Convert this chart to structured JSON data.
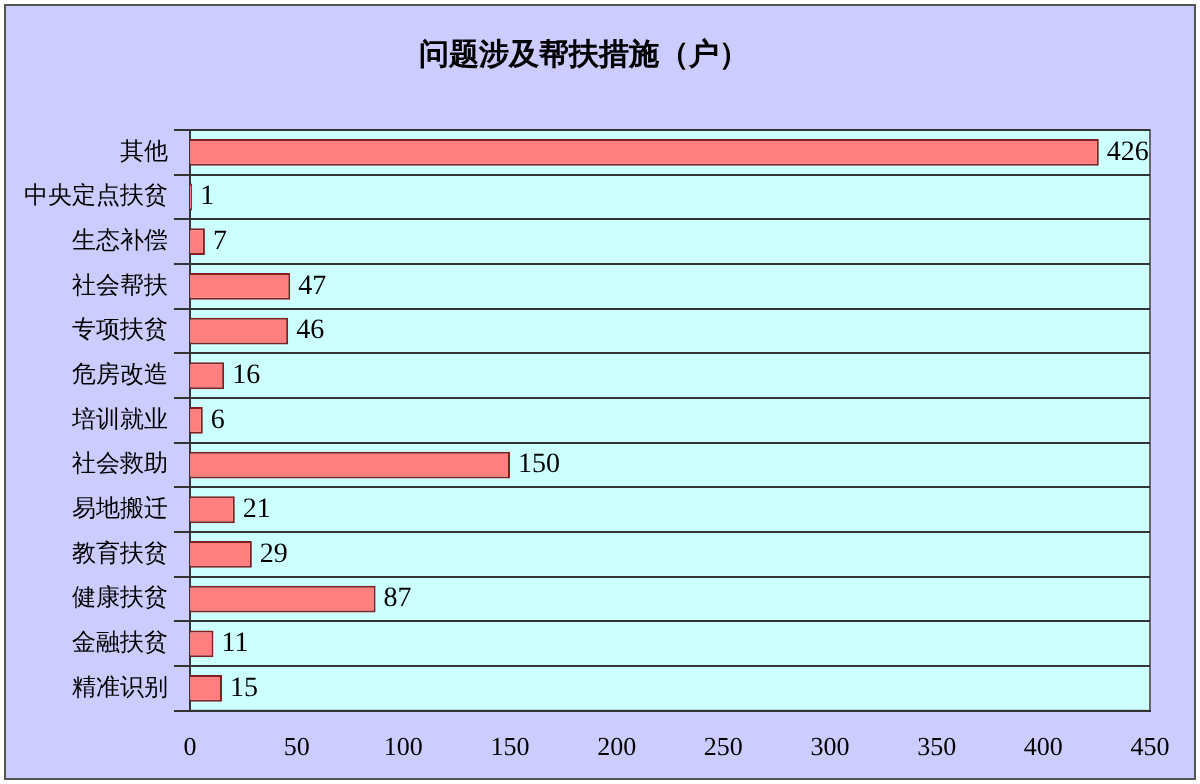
{
  "chart_data": {
    "type": "bar",
    "orientation": "horizontal",
    "title": "问题涉及帮扶措施（户）",
    "categories": [
      "其他",
      "中央定点扶贫",
      "生态补偿",
      "社会帮扶",
      "专项扶贫",
      "危房改造",
      "培训就业",
      "社会救助",
      "易地搬迁",
      "教育扶贫",
      "健康扶贫",
      "金融扶贫",
      "精准识别"
    ],
    "values": [
      426,
      1,
      7,
      47,
      46,
      16,
      6,
      150,
      21,
      29,
      87,
      11,
      15
    ],
    "color": "#ff7f7f",
    "xlim": [
      0,
      450
    ],
    "xticks": [
      0,
      50,
      100,
      150,
      200,
      250,
      300,
      350,
      400,
      450
    ],
    "grid": "y",
    "data_labels": true,
    "legend": false
  }
}
